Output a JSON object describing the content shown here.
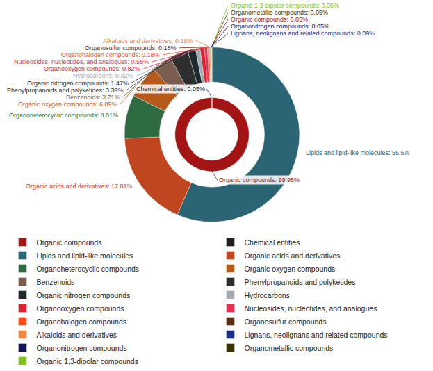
{
  "chart_data": [
    {
      "type": "pie",
      "categories": [
        "Organic compounds",
        "Chemical entities"
      ],
      "values": [
        99.95,
        0.05
      ],
      "value_labels": [
        "Organic compounds: 99.95%",
        "Chemical entities: 0.05%"
      ],
      "colors": [
        "#a31515",
        "#1e1e1e"
      ],
      "data_labels": true
    },
    {
      "type": "pie",
      "categories": [
        "Lipids and lipid-like molecules",
        "Organic acids and derivatives",
        "Organoheterocyclic compounds",
        "Organic oxygen compounds",
        "Benzenoids",
        "Phenylpropanoids and polyketides",
        "Organic nitrogen compounds",
        "Hydrocarbons",
        "Organooxygen compounds",
        "Nucleosides, nucleotides, and analogues",
        "Organohalogen compounds",
        "Organosulfur compounds",
        "Alkaloids and derivatives",
        "Lignans, neolignans and related compounds",
        "Organonitrogen compounds",
        "Organic compounds",
        "Organometallic compounds",
        "Organic 1,3-dipolar compounds"
      ],
      "values": [
        56.5,
        17.81,
        8.01,
        6.09,
        3.71,
        3.39,
        1.47,
        0.82,
        0.82,
        0.55,
        0.18,
        0.18,
        0.18,
        0.09,
        0.05,
        0.05,
        0.05,
        0.05
      ],
      "value_labels": [
        "Lipids and lipid-like molecules: 56.5%",
        "Organic acids and derivatives: 17.81%",
        "Organoheterocyclic compounds: 8.01%",
        "Organic oxygen compounds: 6.09%",
        "Benzenoids: 3.71%",
        "Phenylpropanoids and polyketides: 3.39%",
        "Organic nitrogen compounds: 1.47%",
        "Hydrocarbons: 0.82%",
        "Organooxygen compounds: 0.82%",
        "Nucleosides, nucleotides, and analogues: 0.55%",
        "Organohalogen compounds: 0.18%",
        "Organosulfur compounds: 0.18%",
        "Alkaloids and derivatives: 0.18%",
        "Lignans, neolignans and related compounds: 0.09%",
        "Organonitrogen compounds: 0.05%",
        "Organic compounds: 0.05%",
        "Organometallic compounds: 0.05%",
        "Organic 1,3-dipolar compounds: 0.05%"
      ],
      "colors": [
        "#2b6472",
        "#c0461f",
        "#2f6b40",
        "#b65a1c",
        "#7b5d50",
        "#2e2e2e",
        "#1f2a30",
        "#a3aab2",
        "#e0202e",
        "#e23355",
        "#ff4b12",
        "#5a2c14",
        "#f08442",
        "#1c2c84",
        "#14145a",
        "#a31515",
        "#3b3300",
        "#82c020"
      ],
      "data_labels": true,
      "legend": "bottom"
    }
  ]
}
